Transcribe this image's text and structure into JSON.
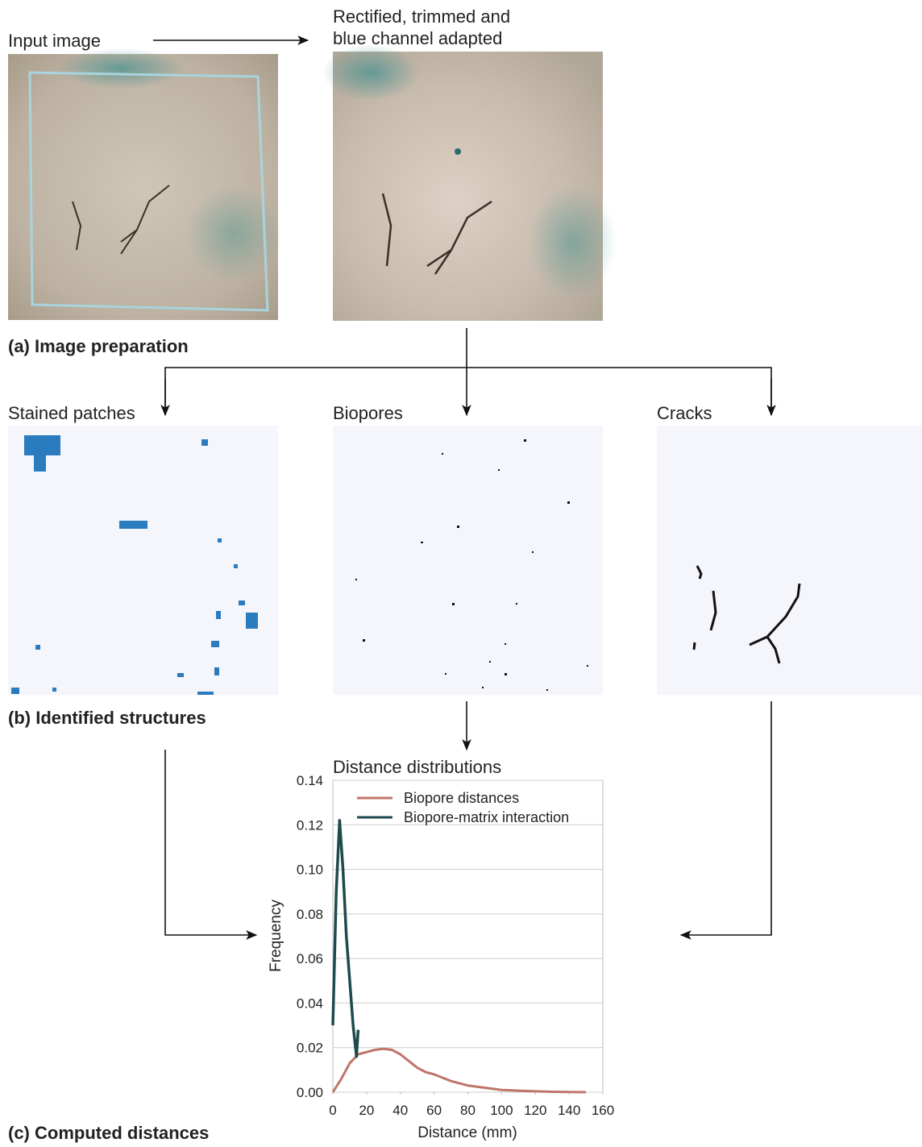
{
  "panels": {
    "input_label": "Input image",
    "rectified_label": [
      "Rectified, trimmed and",
      "blue channel adapted"
    ],
    "section_a": "(a) Image preparation",
    "stained_label": "Stained patches",
    "biopores_label": "Biopores",
    "cracks_label": "Cracks",
    "section_b": "(b) Identified structures",
    "section_c": "(c) Computed distances"
  },
  "chart_data": {
    "type": "line",
    "title": "Distance distributions",
    "x_label": "Distance (mm)",
    "y_label": "Frequency",
    "xlim": [
      0,
      160
    ],
    "xticks": [
      0,
      20,
      40,
      60,
      80,
      100,
      120,
      140,
      160
    ],
    "ylim": [
      0,
      0.14
    ],
    "yticks": [
      {
        "value": 0,
        "label": "0.00"
      },
      {
        "value": 0.02,
        "label": "0.02"
      },
      {
        "value": 0.04,
        "label": "0.04"
      },
      {
        "value": 0.06,
        "label": "0.06"
      },
      {
        "value": 0.08,
        "label": "0.08"
      },
      {
        "value": 0.1,
        "label": "0.10"
      },
      {
        "value": 0.12,
        "label": "0.12"
      },
      {
        "value": 0.14,
        "label": "0.14"
      }
    ],
    "grid": true,
    "legend": "upper left",
    "series": [
      {
        "name": "Biopore distances",
        "color": "#c0756a",
        "x": [
          0,
          5,
          10,
          15,
          20,
          25,
          30,
          35,
          40,
          45,
          50,
          55,
          60,
          70,
          80,
          90,
          100,
          110,
          120,
          130,
          140,
          150
        ],
        "values": [
          0,
          0.006,
          0.013,
          0.017,
          0.018,
          0.019,
          0.0195,
          0.019,
          0.017,
          0.014,
          0.011,
          0.009,
          0.008,
          0.005,
          0.003,
          0.002,
          0.001,
          0.0007,
          0.0004,
          0.0002,
          0.0001,
          0
        ]
      },
      {
        "name": "Biopore-matrix interaction",
        "color": "#1d4a4c",
        "x": [
          0,
          2,
          4,
          6,
          8,
          10,
          12,
          14,
          15
        ],
        "values": [
          0.03,
          0.09,
          0.122,
          0.1,
          0.07,
          0.05,
          0.03,
          0.016,
          0.028
        ]
      }
    ]
  }
}
